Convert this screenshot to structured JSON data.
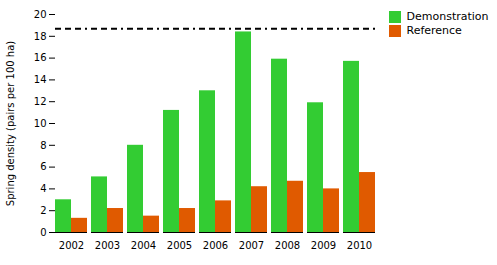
{
  "chart_data": {
    "type": "bar",
    "categories": [
      "2002",
      "2003",
      "2004",
      "2005",
      "2006",
      "2007",
      "2008",
      "2009",
      "2010"
    ],
    "series": [
      {
        "name": "Demonstration",
        "color": "#33cc33",
        "values": [
          3.0,
          5.1,
          8.0,
          11.2,
          13.0,
          18.4,
          15.9,
          11.9,
          15.7
        ]
      },
      {
        "name": "Reference",
        "color": "#e05a00",
        "values": [
          1.3,
          2.2,
          1.5,
          2.2,
          2.9,
          4.2,
          4.7,
          4.0,
          5.5
        ]
      }
    ],
    "target_line": 18.7,
    "ylabel": "Spring density (pairs per 100 ha)",
    "ylim": [
      0,
      20
    ],
    "yticks": [
      0,
      2,
      4,
      6,
      8,
      10,
      12,
      14,
      16,
      18,
      20
    ],
    "grid": false,
    "legend": "right"
  }
}
